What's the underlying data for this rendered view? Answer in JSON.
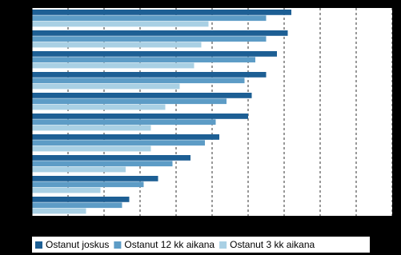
{
  "chart_data": {
    "type": "hbar",
    "categories": [
      null,
      null,
      null,
      null,
      null,
      null,
      null,
      null,
      null,
      null
    ],
    "series": [
      {
        "name": "Ostanut joskus",
        "color": "#1d5f94",
        "values": [
          72,
          71,
          68,
          65,
          61,
          60,
          52,
          44,
          35,
          27
        ]
      },
      {
        "name": "Ostanut 12 kk aikana",
        "color": "#5d9cc6",
        "values": [
          65,
          65,
          62,
          59,
          54,
          51,
          48,
          39,
          31,
          25
        ]
      },
      {
        "name": "Ostanut 3 kk aikana",
        "color": "#a9d0e4",
        "values": [
          49,
          47,
          45,
          41,
          37,
          33,
          33,
          26,
          19,
          15
        ]
      }
    ],
    "xlim": [
      0,
      100
    ],
    "xticks": [
      0,
      10,
      20,
      30,
      40,
      50,
      60,
      70,
      80,
      90,
      100
    ],
    "grid": true,
    "legend": "bottom"
  }
}
